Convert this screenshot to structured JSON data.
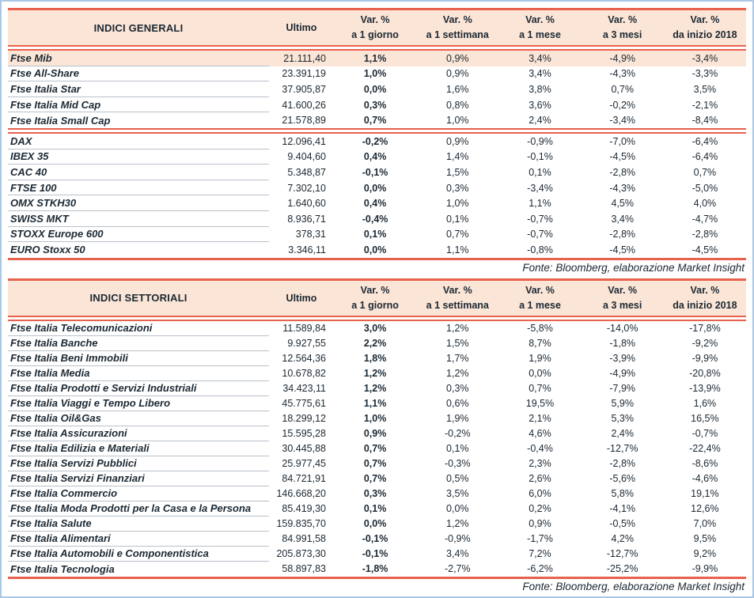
{
  "colors": {
    "accent_red": "#e8614c",
    "header_bg": "#fbe5d6",
    "highlight_row_bg": "#fbe5d6",
    "text": "#1b2833",
    "row_divider": "#b9c1ca",
    "page_border": "#aac7e4"
  },
  "shared": {
    "ultimo_label": "Ultimo",
    "var_headers": [
      {
        "l1": "Var. %",
        "l2": "a 1 giorno"
      },
      {
        "l1": "Var. %",
        "l2": "a 1 settimana"
      },
      {
        "l1": "Var. %",
        "l2": "a 1 mese"
      },
      {
        "l1": "Var. %",
        "l2": "a 3 mesi"
      },
      {
        "l1": "Var. %",
        "l2": "da inizio 2018"
      }
    ]
  },
  "tables": [
    {
      "title": "INDICI GENERALI",
      "fonte": "Fonte: Bloomberg, elaborazione Market Insight",
      "groups": [
        {
          "rows": [
            {
              "name": "Ftse Mib",
              "ultimo": "21.111,40",
              "vars": [
                "1,1%",
                "0,9%",
                "3,4%",
                "-4,9%",
                "-3,4%"
              ],
              "highlight": true
            },
            {
              "name": "Ftse All-Share",
              "ultimo": "23.391,19",
              "vars": [
                "1,0%",
                "0,9%",
                "3,4%",
                "-4,3%",
                "-3,3%"
              ]
            },
            {
              "name": "Ftse Italia Star",
              "ultimo": "37.905,87",
              "vars": [
                "0,0%",
                "1,6%",
                "3,8%",
                "0,7%",
                "3,5%"
              ]
            },
            {
              "name": "Ftse Italia Mid Cap",
              "ultimo": "41.600,26",
              "vars": [
                "0,3%",
                "0,8%",
                "3,6%",
                "-0,2%",
                "-2,1%"
              ]
            },
            {
              "name": "Ftse Italia Small Cap",
              "ultimo": "21.578,89",
              "vars": [
                "0,7%",
                "1,0%",
                "2,4%",
                "-3,4%",
                "-8,4%"
              ]
            }
          ]
        },
        {
          "rows": [
            {
              "name": "DAX",
              "ultimo": "12.096,41",
              "vars": [
                "-0,2%",
                "0,9%",
                "-0,9%",
                "-7,0%",
                "-6,4%"
              ]
            },
            {
              "name": "IBEX 35",
              "ultimo": "9.404,60",
              "vars": [
                "0,4%",
                "1,4%",
                "-0,1%",
                "-4,5%",
                "-6,4%"
              ]
            },
            {
              "name": "CAC 40",
              "ultimo": "5.348,87",
              "vars": [
                "-0,1%",
                "1,5%",
                "0,1%",
                "-2,8%",
                "0,7%"
              ]
            },
            {
              "name": "FTSE 100",
              "ultimo": "7.302,10",
              "vars": [
                "0,0%",
                "0,3%",
                "-3,4%",
                "-4,3%",
                "-5,0%"
              ]
            },
            {
              "name": "OMX STKH30",
              "ultimo": "1.640,60",
              "vars": [
                "0,4%",
                "1,0%",
                "1,1%",
                "4,5%",
                "4,0%"
              ]
            },
            {
              "name": "SWISS MKT",
              "ultimo": "8.936,71",
              "vars": [
                "-0,4%",
                "0,1%",
                "-0,7%",
                "3,4%",
                "-4,7%"
              ]
            },
            {
              "name": "STOXX Europe 600",
              "ultimo": "378,31",
              "vars": [
                "0,1%",
                "0,7%",
                "-0,7%",
                "-2,8%",
                "-2,8%"
              ]
            },
            {
              "name": "EURO Stoxx 50",
              "ultimo": "3.346,11",
              "vars": [
                "0,0%",
                "1,1%",
                "-0,8%",
                "-4,5%",
                "-4,5%"
              ]
            }
          ]
        }
      ]
    },
    {
      "title": "INDICI SETTORIALI",
      "fonte": "Fonte: Bloomberg, elaborazione Market Insight",
      "groups": [
        {
          "rows": [
            {
              "name": "Ftse Italia Telecomunicazioni",
              "ultimo": "11.589,84",
              "vars": [
                "3,0%",
                "1,2%",
                "-5,8%",
                "-14,0%",
                "-17,8%"
              ]
            },
            {
              "name": "Ftse Italia Banche",
              "ultimo": "9.927,55",
              "vars": [
                "2,2%",
                "1,5%",
                "8,7%",
                "-1,8%",
                "-9,2%"
              ]
            },
            {
              "name": "Ftse Italia Beni Immobili",
              "ultimo": "12.564,36",
              "vars": [
                "1,8%",
                "1,7%",
                "1,9%",
                "-3,9%",
                "-9,9%"
              ]
            },
            {
              "name": "Ftse Italia Media",
              "ultimo": "10.678,82",
              "vars": [
                "1,2%",
                "1,2%",
                "0,0%",
                "-4,9%",
                "-20,8%"
              ]
            },
            {
              "name": "Ftse Italia Prodotti e Servizi Industriali",
              "ultimo": "34.423,11",
              "vars": [
                "1,2%",
                "0,3%",
                "0,7%",
                "-7,9%",
                "-13,9%"
              ]
            },
            {
              "name": "Ftse Italia Viaggi e Tempo Libero",
              "ultimo": "45.775,61",
              "vars": [
                "1,1%",
                "0,6%",
                "19,5%",
                "5,9%",
                "1,6%"
              ]
            },
            {
              "name": "Ftse Italia Oil&Gas",
              "ultimo": "18.299,12",
              "vars": [
                "1,0%",
                "1,9%",
                "2,1%",
                "5,3%",
                "16,5%"
              ]
            },
            {
              "name": "Ftse Italia Assicurazioni",
              "ultimo": "15.595,28",
              "vars": [
                "0,9%",
                "-0,2%",
                "4,6%",
                "2,4%",
                "-0,7%"
              ]
            },
            {
              "name": "Ftse Italia Edilizia e Materiali",
              "ultimo": "30.445,88",
              "vars": [
                "0,7%",
                "0,1%",
                "-0,4%",
                "-12,7%",
                "-22,4%"
              ]
            },
            {
              "name": "Ftse Italia Servizi Pubblici",
              "ultimo": "25.977,45",
              "vars": [
                "0,7%",
                "-0,3%",
                "2,3%",
                "-2,8%",
                "-8,6%"
              ]
            },
            {
              "name": "Ftse Italia Servizi Finanziari",
              "ultimo": "84.721,91",
              "vars": [
                "0,7%",
                "0,5%",
                "2,6%",
                "-5,6%",
                "-4,6%"
              ]
            },
            {
              "name": "Ftse Italia Commercio",
              "ultimo": "146.668,20",
              "vars": [
                "0,3%",
                "3,5%",
                "6,0%",
                "5,8%",
                "19,1%"
              ]
            },
            {
              "name": "Ftse Italia Moda Prodotti per la Casa e la Persona",
              "ultimo": "85.419,30",
              "vars": [
                "0,1%",
                "0,0%",
                "0,2%",
                "-4,1%",
                "12,6%"
              ]
            },
            {
              "name": "Ftse Italia Salute",
              "ultimo": "159.835,70",
              "vars": [
                "0,0%",
                "1,2%",
                "0,9%",
                "-0,5%",
                "7,0%"
              ]
            },
            {
              "name": "Ftse Italia Alimentari",
              "ultimo": "84.991,58",
              "vars": [
                "-0,1%",
                "-0,9%",
                "-1,7%",
                "4,2%",
                "9,5%"
              ]
            },
            {
              "name": "Ftse Italia Automobili e Componentistica",
              "ultimo": "205.873,30",
              "vars": [
                "-0,1%",
                "3,4%",
                "7,2%",
                "-12,7%",
                "9,2%"
              ]
            },
            {
              "name": "Ftse Italia Tecnologia",
              "ultimo": "58.897,83",
              "vars": [
                "-1,8%",
                "-2,7%",
                "-6,2%",
                "-25,2%",
                "-9,9%"
              ]
            }
          ]
        }
      ]
    }
  ]
}
